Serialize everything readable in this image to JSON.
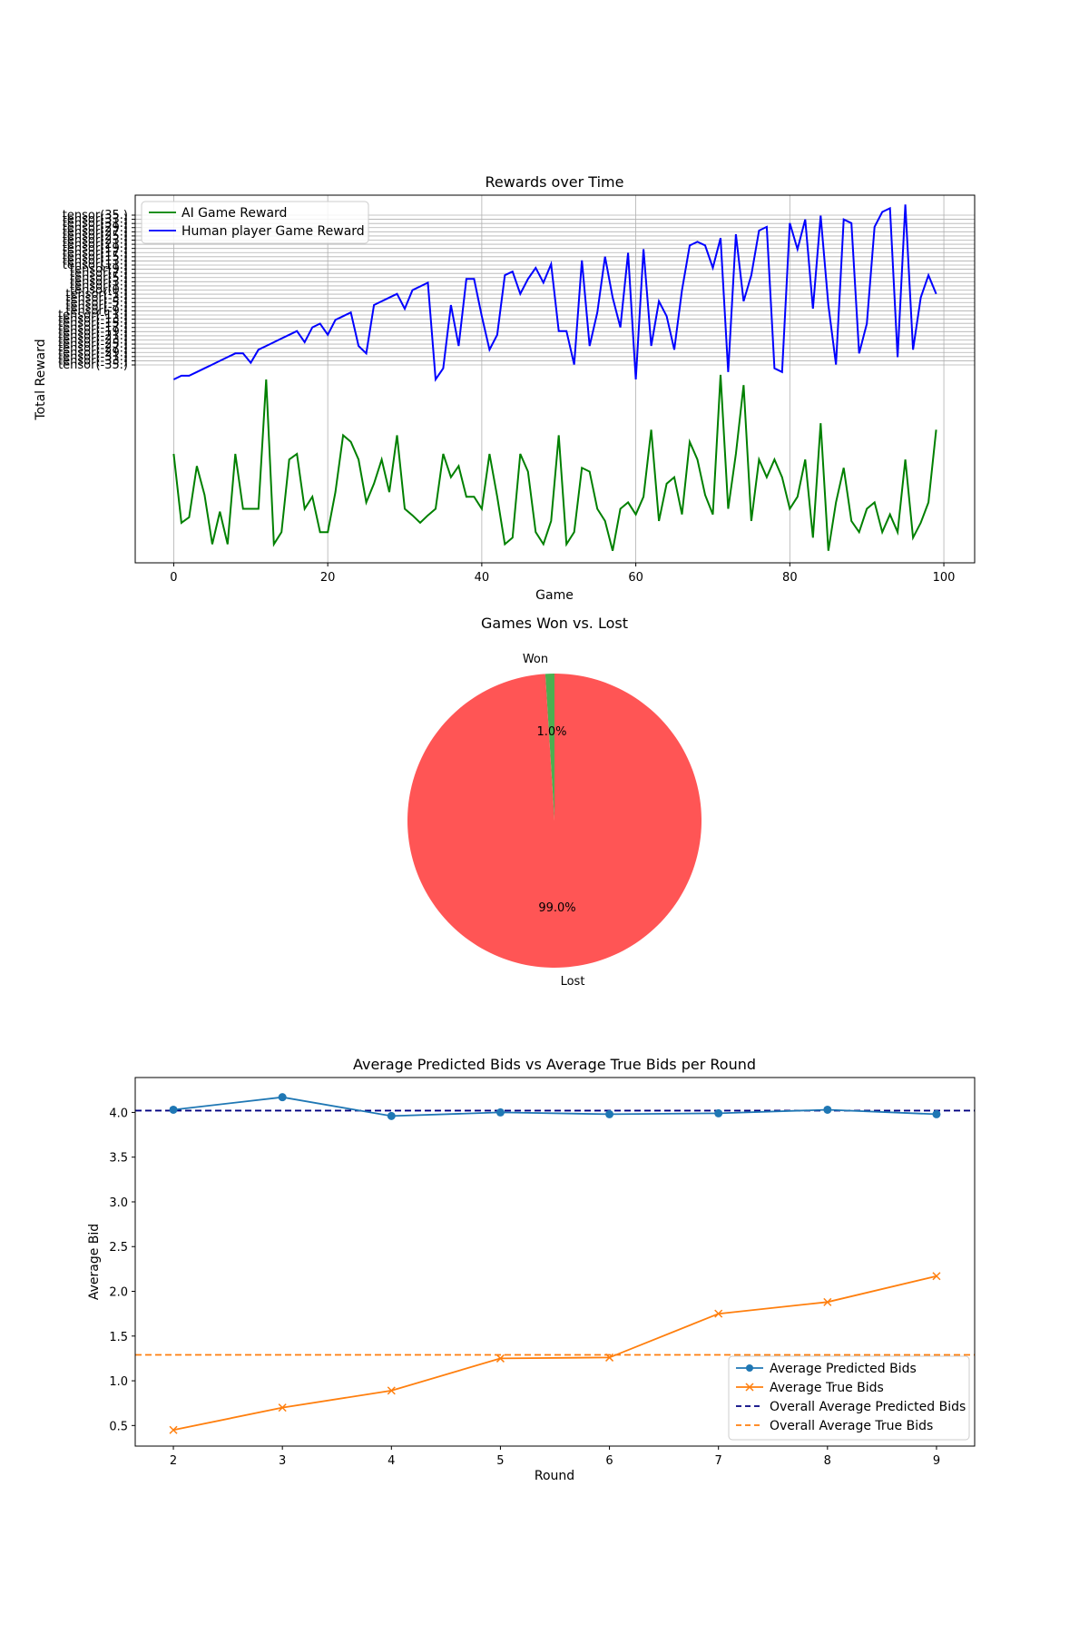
{
  "chart_data": [
    {
      "type": "line",
      "title": "Rewards over Time",
      "xlabel": "Game",
      "ylabel": "Total Reward",
      "xlim": [
        -5,
        104
      ],
      "xticks": [
        0,
        20,
        40,
        60,
        80,
        100
      ],
      "grid": true,
      "legend_position": "upper-left",
      "legend": [
        "AI Game Reward",
        "Human player Game Reward"
      ],
      "y_tick_labels": [
        "tensor(35.)",
        "tensor(33.)",
        "tensor(31.)",
        "tensor(29.)",
        "tensor(27.)",
        "tensor(25.)",
        "tensor(23.)",
        "tensor(21.)",
        "tensor(19.)",
        "tensor(17.)",
        "tensor(15.)",
        "tensor(13.)",
        "tensor(11.)",
        "tensor(9.)",
        "tensor(7.)",
        "tensor(5.)",
        "tensor(3.)",
        "tensor(1.)",
        "tensor(0.)",
        "tensor(-1.)",
        "tensor(-3.)",
        "tensor(-5.)",
        "tensor(-7.)",
        "tensor(-9.)",
        "tensor(-11.)",
        "tensor(-13.)",
        "tensor(-15.)",
        "tensor(-17.)",
        "tensor(-19.)",
        "tensor(-21.)",
        "tensor(-23.)",
        "tensor(-25.)",
        "tensor(-27.)",
        "tensor(-29.)",
        "tensor(-31.)",
        "tensor(-33.)",
        "tensor(-35.)"
      ],
      "series": [
        {
          "name": "AI Game Reward",
          "color": "#008000",
          "x": [
            0,
            1,
            2,
            3,
            4,
            5,
            6,
            7,
            8,
            9,
            10,
            11,
            12,
            13,
            14,
            15,
            16,
            17,
            18,
            19,
            20,
            21,
            22,
            23,
            24,
            25,
            26,
            27,
            28,
            29,
            30,
            31,
            32,
            33,
            34,
            35,
            36,
            37,
            38,
            39,
            40,
            41,
            42,
            43,
            44,
            45,
            46,
            47,
            48,
            49,
            50,
            51,
            52,
            53,
            54,
            55,
            56,
            57,
            58,
            59,
            60,
            61,
            62,
            63,
            64,
            65,
            66,
            67,
            68,
            69,
            70,
            71,
            72,
            73,
            74,
            75,
            76,
            77,
            78,
            79,
            80,
            81,
            82,
            83,
            84,
            85,
            86,
            87,
            88,
            89,
            90,
            91,
            92,
            93,
            94,
            95,
            96,
            97,
            98,
            99
          ],
          "y": [
            0.42,
            -0.32,
            -0.26,
            0.29,
            -0.02,
            -0.55,
            -0.2,
            -0.55,
            0.42,
            -0.17,
            -0.17,
            -0.17,
            1.22,
            -0.55,
            -0.42,
            0.36,
            0.42,
            -0.17,
            -0.04,
            -0.42,
            -0.42,
            0.01,
            0.62,
            0.55,
            0.36,
            -0.1,
            0.1,
            0.36,
            0.01,
            0.62,
            -0.17,
            -0.24,
            -0.32,
            -0.24,
            -0.17,
            0.42,
            0.17,
            0.29,
            -0.04,
            -0.04,
            -0.17,
            0.42,
            -0.04,
            -0.55,
            -0.48,
            0.42,
            0.23,
            -0.42,
            -0.55,
            -0.3,
            0.62,
            -0.55,
            -0.42,
            0.27,
            0.23,
            -0.17,
            -0.3,
            -0.62,
            -0.17,
            -0.1,
            -0.23,
            -0.04,
            0.68,
            -0.3,
            0.1,
            0.17,
            -0.23,
            0.55,
            0.36,
            -0.02,
            -0.23,
            1.27,
            -0.17,
            0.42,
            1.16,
            -0.3,
            0.36,
            0.17,
            0.36,
            0.17,
            -0.17,
            -0.04,
            0.36,
            -0.48,
            0.75,
            -0.62,
            -0.1,
            0.27,
            -0.3,
            -0.42,
            -0.17,
            -0.1,
            -0.42,
            -0.23,
            -0.42,
            0.36,
            -0.48,
            -0.32,
            -0.1,
            0.68
          ]
        },
        {
          "name": "Human player Game Reward",
          "color": "#0000ff",
          "x": [
            0,
            1,
            2,
            3,
            4,
            5,
            6,
            7,
            8,
            9,
            10,
            11,
            12,
            13,
            14,
            15,
            16,
            17,
            18,
            19,
            20,
            21,
            22,
            23,
            24,
            25,
            26,
            27,
            28,
            29,
            30,
            31,
            32,
            33,
            34,
            35,
            36,
            37,
            38,
            39,
            40,
            41,
            42,
            43,
            44,
            45,
            46,
            47,
            48,
            49,
            50,
            51,
            52,
            53,
            54,
            55,
            56,
            57,
            58,
            59,
            60,
            61,
            62,
            63,
            64,
            65,
            66,
            67,
            68,
            69,
            70,
            71,
            72,
            73,
            74,
            75,
            76,
            77,
            78,
            79,
            80,
            81,
            82,
            83,
            84,
            85,
            86,
            87,
            88,
            89,
            90,
            91,
            92,
            93,
            94,
            95,
            96,
            97,
            98,
            99
          ],
          "y": [
            1.22,
            1.26,
            1.26,
            1.3,
            1.34,
            1.38,
            1.42,
            1.46,
            1.5,
            1.5,
            1.4,
            1.54,
            1.58,
            1.62,
            1.66,
            1.7,
            1.74,
            1.62,
            1.78,
            1.82,
            1.7,
            1.86,
            1.9,
            1.94,
            1.58,
            1.5,
            2.02,
            2.06,
            2.1,
            2.14,
            1.98,
            2.18,
            2.22,
            2.26,
            1.22,
            1.34,
            2.02,
            1.58,
            2.3,
            2.3,
            1.9,
            1.54,
            1.7,
            2.34,
            2.38,
            2.14,
            2.3,
            2.42,
            2.26,
            2.46,
            1.74,
            1.74,
            1.38,
            2.5,
            1.58,
            1.94,
            2.54,
            2.1,
            1.78,
            2.58,
            1.22,
            2.62,
            1.58,
            2.06,
            1.9,
            1.54,
            2.18,
            2.66,
            2.7,
            2.66,
            2.42,
            2.74,
            1.3,
            2.78,
            2.06,
            2.34,
            2.82,
            2.86,
            1.34,
            1.3,
            2.9,
            2.62,
            2.94,
            1.98,
            2.98,
            2.02,
            1.38,
            2.94,
            2.9,
            1.5,
            1.82,
            2.86,
            3.02,
            3.06,
            1.46,
            3.1,
            1.54,
            2.1,
            2.34,
            2.14
          ]
        }
      ]
    },
    {
      "type": "pie",
      "title": "Games Won vs. Lost",
      "labels": [
        "Won",
        "Lost"
      ],
      "values": [
        1.0,
        99.0
      ],
      "autopct_labels": [
        "1.0%",
        "99.0%"
      ],
      "colors": [
        "#4caf50",
        "#ff5555"
      ],
      "start_angle": 90
    },
    {
      "type": "line",
      "title": "Average Predicted Bids vs Average True Bids per Round",
      "xlabel": "Round",
      "ylabel": "Average Bid",
      "x": [
        2,
        3,
        4,
        5,
        6,
        7,
        8,
        9
      ],
      "xlim": [
        1.65,
        9.35
      ],
      "ylim": [
        0.27,
        4.39
      ],
      "xticks": [
        "2",
        "3",
        "4",
        "5",
        "6",
        "7",
        "8",
        "9"
      ],
      "yticks": [
        "0.5",
        "1.0",
        "1.5",
        "2.0",
        "2.5",
        "3.0",
        "3.5",
        "4.0"
      ],
      "grid": false,
      "legend_position": "lower-right",
      "legend": [
        "Average Predicted Bids",
        "Average True Bids",
        "Overall Average Predicted Bids",
        "Overall Average True Bids"
      ],
      "series": [
        {
          "name": "Average Predicted Bids",
          "color": "#1f77b4",
          "marker": "o",
          "values": [
            4.03,
            4.17,
            3.96,
            4.0,
            3.98,
            3.99,
            4.03,
            3.98
          ]
        },
        {
          "name": "Average True Bids",
          "color": "#ff7f0e",
          "marker": "x",
          "values": [
            0.45,
            0.7,
            0.89,
            1.25,
            1.26,
            1.75,
            1.88,
            2.17
          ]
        }
      ],
      "hlines": [
        {
          "name": "Overall Average Predicted Bids",
          "value": 4.02,
          "color": "#000080"
        },
        {
          "name": "Overall Average True Bids",
          "value": 1.29,
          "color": "#ff7f0e"
        }
      ]
    }
  ]
}
